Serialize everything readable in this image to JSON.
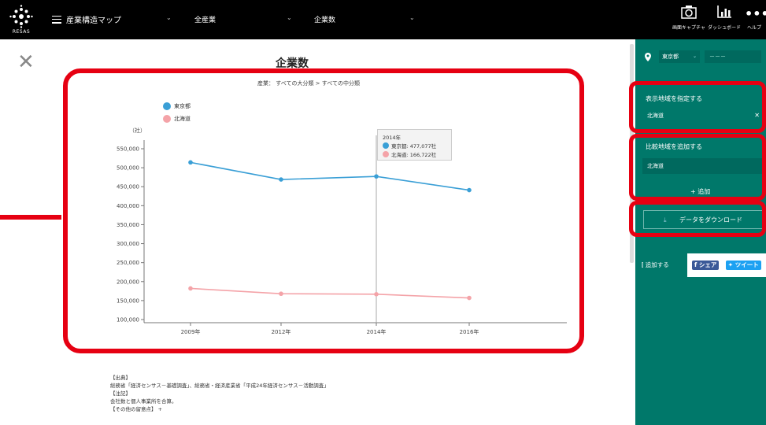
{
  "header": {
    "logo_text": "RESAS",
    "menu_label": "産業構造マップ",
    "industry": "全産業",
    "indicator": "企業数",
    "buttons": [
      {
        "label": "画面キャプチャ",
        "icon": "camera-icon"
      },
      {
        "label": "ダッシュボード",
        "icon": "dashboard-icon"
      },
      {
        "label": "ヘルプ",
        "icon": "more-icon"
      }
    ]
  },
  "main": {
    "title": "企業数",
    "subtitle": "産業： すべての大分類 > すべての中分類",
    "tooltip": {
      "year": "2014年",
      "rows": [
        "東京都: 477,077社",
        "北海道: 166,722社"
      ]
    },
    "notes": [
      "【出典】",
      "総務省「経済センサス－基礎調査」、総務省・経済産業省「平成24年経済センサス－活動調査」",
      "【注記】",
      "会社数と個人事業所を合算。",
      "【その他の留意点】 +"
    ]
  },
  "chart_data": {
    "type": "line",
    "x": [
      "2009年",
      "2012年",
      "2014年",
      "2016年"
    ],
    "ylabel": "（社）",
    "yticks": [
      "100,000",
      "150,000",
      "200,000",
      "250,000",
      "300,000",
      "350,000",
      "400,000",
      "450,000",
      "500,000",
      "550,000"
    ],
    "ylim": [
      100000,
      550000
    ],
    "series": [
      {
        "name": "東京都",
        "color": "#3a9fd6",
        "values": [
          514000,
          469000,
          477077,
          441000
        ]
      },
      {
        "name": "北海道",
        "color": "#f4a3a8",
        "values": [
          182000,
          168000,
          166722,
          157000
        ]
      }
    ],
    "legend": "top-left",
    "highlight_x": "2014年"
  },
  "sidebar": {
    "prefecture": "東京都",
    "city": "－－－",
    "display_region_title": "表示地域を指定する",
    "display_region_value": "北海道",
    "compare_title": "比較地域を追加する",
    "compare_value": "北海道",
    "add_label": "+ 追加",
    "download_label": "データをダウンロード",
    "add_to_label": "追加する",
    "share_label": "シェア",
    "tweet_label": "ツイート"
  },
  "colors": {
    "highlight": "#e60012",
    "sidebar": "#00786a"
  }
}
